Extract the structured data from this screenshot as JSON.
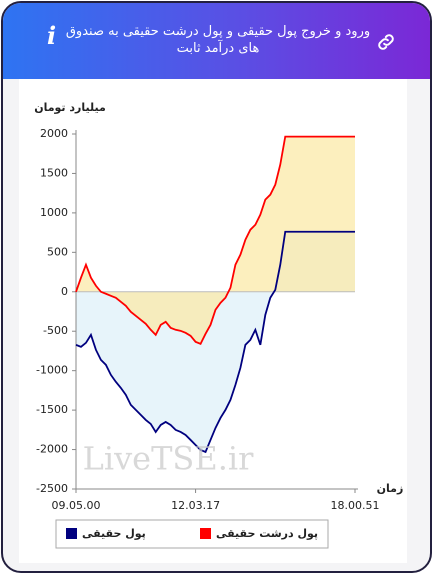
{
  "chart_data": {
    "type": "line",
    "title": "ورود و خروج پول حقیقی و پول درشت حقیقی به صندوق های درآمد ثابت",
    "y_label": "میلیارد تومان",
    "x_label": "زمان",
    "watermark": "LiveTSE.ir",
    "x": [
      0,
      1,
      2,
      3,
      4,
      5,
      6,
      7,
      8,
      9,
      10,
      11,
      12,
      13,
      14,
      15,
      16,
      17,
      18,
      19,
      20,
      21,
      22,
      23,
      24,
      25,
      26,
      27,
      28,
      29,
      30,
      31,
      32,
      33,
      34,
      35,
      36,
      37,
      38,
      39,
      40,
      41,
      42,
      56
    ],
    "xlim": [
      0,
      56
    ],
    "xticks": [
      {
        "value": 0,
        "label": "09.05.00"
      },
      {
        "value": 24,
        "label": "12.03.17"
      },
      {
        "value": 56,
        "label": "18.00.51"
      }
    ],
    "ylim": [
      -2500,
      2000
    ],
    "yticks": [
      -2500,
      -2000,
      -1500,
      -1000,
      -500,
      0,
      500,
      1000,
      1500,
      2000
    ],
    "series": [
      {
        "name": "پول حقیقی",
        "color": "#00007f",
        "fill": "#dff0f8",
        "values": [
          -673,
          -698,
          -647,
          -546,
          -736,
          -863,
          -926,
          -1053,
          -1142,
          -1218,
          -1307,
          -1434,
          -1497,
          -1561,
          -1624,
          -1675,
          -1777,
          -1688,
          -1650,
          -1688,
          -1751,
          -1777,
          -1815,
          -1878,
          -1942,
          -2005,
          -2030,
          -1878,
          -1726,
          -1599,
          -1497,
          -1370,
          -1180,
          -964,
          -673,
          -609,
          -482,
          -673,
          -292,
          -76,
          25,
          343,
          761,
          761
        ]
      },
      {
        "name": "پول درشت حقیقی",
        "color": "#ff0000",
        "fill": "#fbe9a8",
        "values": [
          0,
          178,
          343,
          178,
          76,
          0,
          -25,
          -51,
          -76,
          -127,
          -178,
          -254,
          -305,
          -355,
          -406,
          -482,
          -546,
          -419,
          -381,
          -457,
          -482,
          -495,
          -520,
          -558,
          -635,
          -660,
          -533,
          -419,
          -228,
          -140,
          -76,
          51,
          343,
          470,
          660,
          787,
          850,
          977,
          1168,
          1231,
          1358,
          1612,
          1967,
          1967
        ]
      }
    ]
  }
}
